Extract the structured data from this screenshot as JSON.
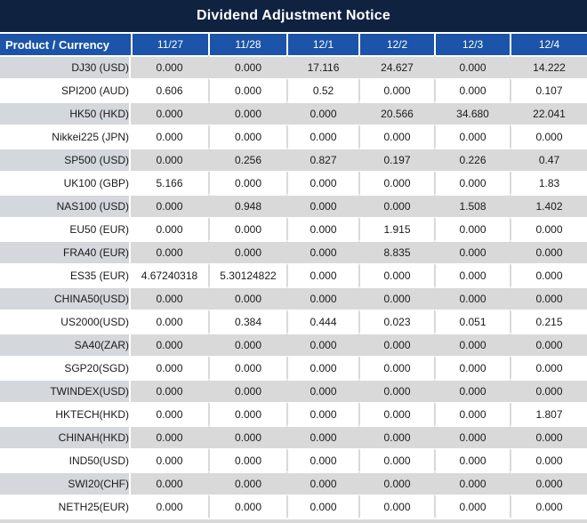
{
  "title": "Dividend Adjustment Notice",
  "colors": {
    "title_navy": "#0f2240",
    "header_blue": "#1b54a8",
    "stripe_gray": "#d9d9d9",
    "product_stripe_gray": "#d4d7db",
    "negative_red": "#e0281e",
    "text_black": "#1a1a1a",
    "grid_white": "#ffffff"
  },
  "table": {
    "columns": [
      "Product / Currency",
      "11/27",
      "11/28",
      "12/1",
      "12/2",
      "12/3",
      "12/4"
    ],
    "rows": [
      {
        "product": "DJ30 (USD)",
        "values": [
          "0.000",
          "0.000",
          "17.116",
          "24.627",
          "0.000",
          "14.222"
        ],
        "red": [
          false,
          false,
          true,
          true,
          false,
          true
        ]
      },
      {
        "product": "SPI200 (AUD)",
        "values": [
          "0.606",
          "0.000",
          "0.52",
          "0.000",
          "0.000",
          "0.107"
        ],
        "red": [
          true,
          false,
          true,
          false,
          false,
          true
        ]
      },
      {
        "product": "HK50 (HKD)",
        "values": [
          "0.000",
          "0.000",
          "0.000",
          "20.566",
          "34.680",
          "22.041"
        ],
        "red": [
          false,
          false,
          false,
          true,
          true,
          true
        ]
      },
      {
        "product": "Nikkei225 (JPN)",
        "values": [
          "0.000",
          "0.000",
          "0.000",
          "0.000",
          "0.000",
          "0.000"
        ],
        "red": [
          false,
          false,
          false,
          false,
          false,
          false
        ]
      },
      {
        "product": "SP500 (USD)",
        "values": [
          "0.000",
          "0.256",
          "0.827",
          "0.197",
          "0.226",
          "0.47"
        ],
        "red": [
          false,
          true,
          true,
          true,
          true,
          true
        ]
      },
      {
        "product": "UK100 (GBP)",
        "values": [
          "5.166",
          "0.000",
          "0.000",
          "0.000",
          "0.000",
          "1.83"
        ],
        "red": [
          true,
          false,
          false,
          false,
          false,
          true
        ]
      },
      {
        "product": "NAS100 (USD)",
        "values": [
          "0.000",
          "0.948",
          "0.000",
          "0.000",
          "1.508",
          "1.402"
        ],
        "red": [
          false,
          true,
          false,
          false,
          true,
          true
        ]
      },
      {
        "product": "EU50 (EUR)",
        "values": [
          "0.000",
          "0.000",
          "0.000",
          "1.915",
          "0.000",
          "0.000"
        ],
        "red": [
          false,
          false,
          false,
          true,
          false,
          false
        ]
      },
      {
        "product": "FRA40 (EUR)",
        "values": [
          "0.000",
          "0.000",
          "0.000",
          "8.835",
          "0.000",
          "0.000"
        ],
        "red": [
          false,
          false,
          false,
          true,
          false,
          false
        ]
      },
      {
        "product": "ES35 (EUR)",
        "values": [
          "4.67240318",
          "5.30124822",
          "0.000",
          "0.000",
          "0.000",
          "0.000"
        ],
        "red": [
          true,
          true,
          false,
          false,
          false,
          false
        ]
      },
      {
        "product": "CHINA50(USD)",
        "values": [
          "0.000",
          "0.000",
          "0.000",
          "0.000",
          "0.000",
          "0.000"
        ],
        "red": [
          false,
          false,
          false,
          false,
          false,
          false
        ]
      },
      {
        "product": "US2000(USD)",
        "values": [
          "0.000",
          "0.384",
          "0.444",
          "0.023",
          "0.051",
          "0.215"
        ],
        "red": [
          false,
          true,
          true,
          true,
          true,
          true
        ]
      },
      {
        "product": "SA40(ZAR)",
        "values": [
          "0.000",
          "0.000",
          "0.000",
          "0.000",
          "0.000",
          "0.000"
        ],
        "red": [
          false,
          false,
          false,
          false,
          false,
          false
        ]
      },
      {
        "product": "SGP20(SGD)",
        "values": [
          "0.000",
          "0.000",
          "0.000",
          "0.000",
          "0.000",
          "0.000"
        ],
        "red": [
          false,
          false,
          false,
          false,
          false,
          false
        ]
      },
      {
        "product": "TWINDEX(USD)",
        "values": [
          "0.000",
          "0.000",
          "0.000",
          "0.000",
          "0.000",
          "0.000"
        ],
        "red": [
          false,
          false,
          false,
          false,
          false,
          false
        ]
      },
      {
        "product": "HKTECH(HKD)",
        "values": [
          "0.000",
          "0.000",
          "0.000",
          "0.000",
          "0.000",
          "1.807"
        ],
        "red": [
          false,
          false,
          false,
          false,
          false,
          true
        ]
      },
      {
        "product": "CHINAH(HKD)",
        "values": [
          "0.000",
          "0.000",
          "0.000",
          "0.000",
          "0.000",
          "0.000"
        ],
        "red": [
          false,
          false,
          false,
          false,
          false,
          false
        ]
      },
      {
        "product": "IND50(USD)",
        "values": [
          "0.000",
          "0.000",
          "0.000",
          "0.000",
          "0.000",
          "0.000"
        ],
        "red": [
          false,
          false,
          false,
          false,
          false,
          false
        ]
      },
      {
        "product": "SWI20(CHF)",
        "values": [
          "0.000",
          "0.000",
          "0.000",
          "0.000",
          "0.000",
          "0.000"
        ],
        "red": [
          false,
          false,
          false,
          false,
          false,
          false
        ]
      },
      {
        "product": "NETH25(EUR)",
        "values": [
          "0.000",
          "0.000",
          "0.000",
          "0.000",
          "0.000",
          "0.000"
        ],
        "red": [
          false,
          false,
          false,
          false,
          false,
          false
        ]
      }
    ]
  }
}
